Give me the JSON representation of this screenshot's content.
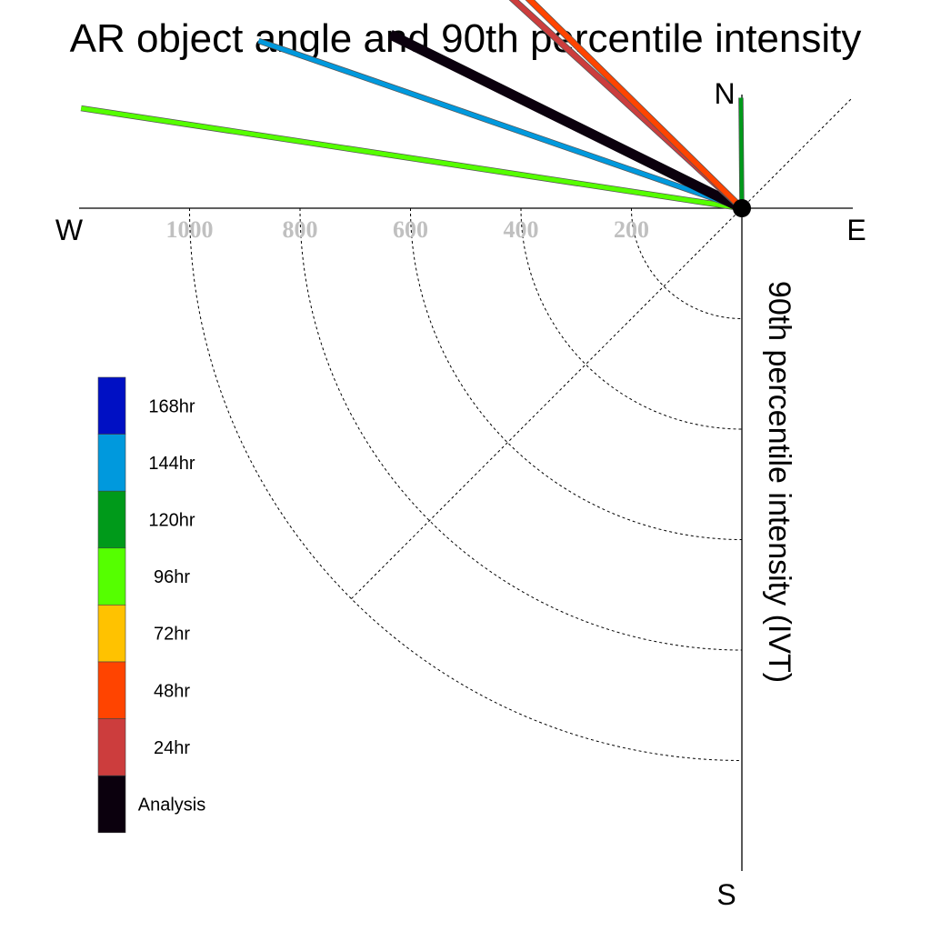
{
  "chart_data": {
    "type": "polar-vector",
    "title": "AR object angle and 90th percentile intensity",
    "radial_label": "90th percentile intensity (IVT)",
    "compass": {
      "north": "N",
      "south": "S",
      "east": "E",
      "west": "W"
    },
    "radial_ticks": [
      1000,
      800,
      600,
      400,
      200
    ],
    "radial_max": 1200,
    "grid": true,
    "legend_placement": "left",
    "legend": [
      {
        "label": "168hr",
        "color": "#0010c4"
      },
      {
        "label": "144hr",
        "color": "#0099dd"
      },
      {
        "label": "120hr",
        "color": "#009a1a"
      },
      {
        "label": "96hr",
        "color": "#55ff00"
      },
      {
        "label": "72hr",
        "color": "#ffc200"
      },
      {
        "label": "48hr",
        "color": "#ff4400"
      },
      {
        "label": "24hr",
        "color": "#cc3d3d"
      },
      {
        "label": "Analysis",
        "color": "#0b000d"
      }
    ],
    "series": [
      {
        "name": "96hr",
        "angle_deg": 278.6,
        "intensity": 1210,
        "color": "#55ff00",
        "width": 5
      },
      {
        "name": "144hr",
        "angle_deg": 289.1,
        "intensity": 926,
        "color": "#0099dd",
        "width": 5
      },
      {
        "name": "Analysis",
        "angle_deg": 296.3,
        "intensity": 710,
        "color": "#0b000d",
        "width": 11
      },
      {
        "name": "24hr",
        "angle_deg": 312.4,
        "intensity": 574,
        "color": "#cc3d3d",
        "width": 6
      },
      {
        "name": "48hr",
        "angle_deg": 314.5,
        "intensity": 560,
        "color": "#ff4400",
        "width": 6
      },
      {
        "name": "120hr",
        "angle_deg": 359.5,
        "intensity": 200,
        "color": "#009a1a",
        "width": 4
      }
    ]
  }
}
